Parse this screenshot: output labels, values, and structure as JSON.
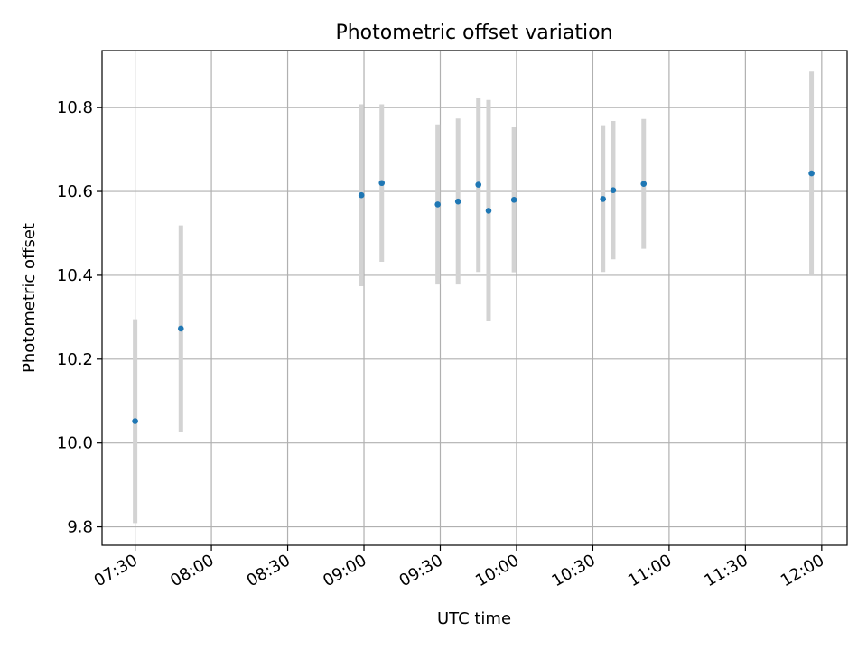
{
  "chart_data": {
    "type": "scatter",
    "title": "Photometric offset variation",
    "xlabel": "UTC time",
    "ylabel": "Photometric offset",
    "x_ticks": [
      "07:30",
      "08:00",
      "08:30",
      "09:00",
      "09:30",
      "10:00",
      "10:30",
      "11:00",
      "11:30",
      "12:00"
    ],
    "y_ticks": [
      "9.8",
      "10.0",
      "10.2",
      "10.4",
      "10.6",
      "10.8"
    ],
    "xlim": [
      "07:17",
      "12:10"
    ],
    "ylim": [
      9.756,
      10.936
    ],
    "grid": true,
    "colors": {
      "marker": "#1f77b4",
      "errorbar": "#d3d3d3",
      "grid": "#b0b0b0"
    },
    "points": [
      {
        "x": "07:30",
        "y": 10.052,
        "err": 0.243
      },
      {
        "x": "07:48",
        "y": 10.273,
        "err": 0.246
      },
      {
        "x": "08:59",
        "y": 10.591,
        "err": 0.217
      },
      {
        "x": "09:07",
        "y": 10.62,
        "err": 0.188
      },
      {
        "x": "09:29",
        "y": 10.569,
        "err": 0.191
      },
      {
        "x": "09:37",
        "y": 10.576,
        "err": 0.198
      },
      {
        "x": "09:45",
        "y": 10.616,
        "err": 0.208
      },
      {
        "x": "09:49",
        "y": 10.554,
        "err": 0.264
      },
      {
        "x": "09:59",
        "y": 10.58,
        "err": 0.173
      },
      {
        "x": "10:34",
        "y": 10.582,
        "err": 0.174
      },
      {
        "x": "10:38",
        "y": 10.603,
        "err": 0.165
      },
      {
        "x": "10:50",
        "y": 10.618,
        "err": 0.155
      },
      {
        "x": "11:56",
        "y": 10.643,
        "err": 0.243
      }
    ]
  }
}
